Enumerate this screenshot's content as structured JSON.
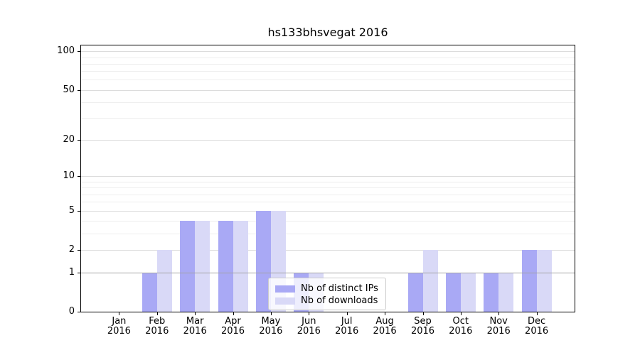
{
  "title": "hs133bhsvegat 2016",
  "legend": {
    "items": [
      {
        "label": "Nb of distinct IPs",
        "color": "#a9a9f5"
      },
      {
        "label": "Nb of downloads",
        "color": "#d9d9f7"
      }
    ]
  },
  "chart_data": {
    "type": "bar",
    "title": "hs133bhsvegat 2016",
    "x_months": [
      "Jan",
      "Feb",
      "Mar",
      "Apr",
      "May",
      "Jun",
      "Jul",
      "Aug",
      "Sep",
      "Oct",
      "Nov",
      "Dec"
    ],
    "year": "2016",
    "series": [
      {
        "name": "Nb of distinct IPs",
        "color": "#a9a9f5",
        "values": [
          0,
          1,
          4,
          4,
          5,
          1,
          0,
          0,
          1,
          1,
          1,
          2
        ]
      },
      {
        "name": "Nb of downloads",
        "color": "#d9d9f7",
        "values": [
          0,
          2,
          4,
          4,
          5,
          1,
          0,
          0,
          2,
          1,
          1,
          2
        ]
      }
    ],
    "yscale": "log1p",
    "ylim": [
      0,
      110
    ],
    "yticks": [
      0,
      1,
      2,
      5,
      10,
      20,
      50,
      100
    ],
    "yticks_minor": [
      3,
      4,
      6,
      7,
      8,
      9,
      30,
      40,
      60,
      70,
      80,
      90
    ],
    "grid": true,
    "legend_position": "lower center"
  },
  "colors": {
    "bar_distinct_ips": "#a9a9f5",
    "bar_downloads": "#d9d9f7",
    "grid_major": "#dcdcdc",
    "grid_minor": "#eeeeee",
    "grid_level1": "#a3a3a3",
    "axis": "#000000",
    "legend_border": "#cccccc"
  }
}
